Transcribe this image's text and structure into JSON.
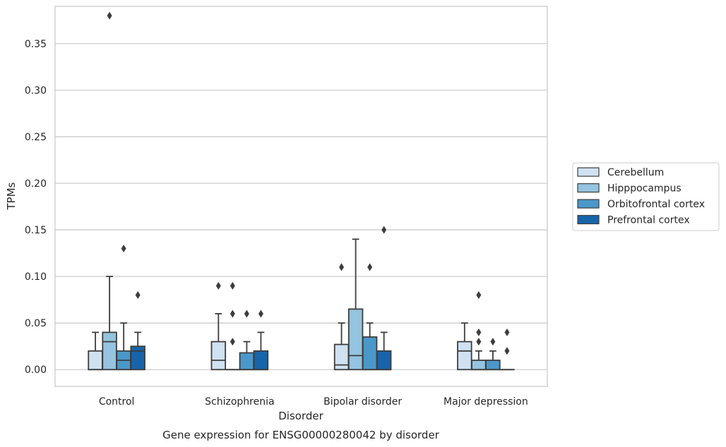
{
  "chart_data": {
    "type": "box",
    "title": "Gene expression for ENSG00000280042 by disorder",
    "xlabel": "Disorder",
    "ylabel": "TPMs",
    "ylim": [
      -0.018,
      0.39
    ],
    "yticks": [
      "0.00",
      "0.05",
      "0.10",
      "0.15",
      "0.20",
      "0.25",
      "0.30",
      "0.35"
    ],
    "categories": [
      "Control",
      "Schizophrenia",
      "Bipolar disorder",
      "Major depression"
    ],
    "grid": "horizontal",
    "legend_position": "right",
    "series": [
      {
        "name": "Cerebellum",
        "color": "#d0e1f2",
        "boxes": [
          {
            "min": 0.0,
            "q1": 0.0,
            "median": 0.0,
            "q3": 0.02,
            "max": 0.04,
            "outliers": []
          },
          {
            "min": 0.0,
            "q1": 0.0,
            "median": 0.01,
            "q3": 0.03,
            "max": 0.06,
            "outliers": [
              0.09
            ]
          },
          {
            "min": 0.0,
            "q1": 0.0,
            "median": 0.005,
            "q3": 0.027,
            "max": 0.05,
            "outliers": [
              0.11
            ]
          },
          {
            "min": 0.0,
            "q1": 0.0,
            "median": 0.02,
            "q3": 0.03,
            "max": 0.05,
            "outliers": []
          }
        ]
      },
      {
        "name": "Hipppocampus",
        "color": "#94c4df",
        "boxes": [
          {
            "min": 0.0,
            "q1": 0.0,
            "median": 0.03,
            "q3": 0.04,
            "max": 0.1,
            "outliers": [
              0.38
            ]
          },
          {
            "min": 0.0,
            "q1": 0.0,
            "median": 0.0,
            "q3": 0.0,
            "max": 0.0,
            "outliers": [
              0.03,
              0.06,
              0.09
            ]
          },
          {
            "min": 0.0,
            "q1": 0.0,
            "median": 0.015,
            "q3": 0.065,
            "max": 0.14,
            "outliers": []
          },
          {
            "min": 0.0,
            "q1": 0.0,
            "median": 0.0,
            "q3": 0.01,
            "max": 0.02,
            "outliers": [
              0.03,
              0.04,
              0.08
            ]
          }
        ]
      },
      {
        "name": "Orbitofrontal cortex",
        "color": "#4a98c9",
        "boxes": [
          {
            "min": 0.0,
            "q1": 0.0,
            "median": 0.01,
            "q3": 0.02,
            "max": 0.05,
            "outliers": [
              0.13
            ]
          },
          {
            "min": 0.0,
            "q1": 0.0,
            "median": 0.0,
            "q3": 0.018,
            "max": 0.03,
            "outliers": [
              0.06
            ]
          },
          {
            "min": 0.0,
            "q1": 0.0,
            "median": 0.0,
            "q3": 0.035,
            "max": 0.05,
            "outliers": [
              0.11
            ]
          },
          {
            "min": 0.0,
            "q1": 0.0,
            "median": 0.0,
            "q3": 0.01,
            "max": 0.02,
            "outliers": [
              0.03
            ]
          }
        ]
      },
      {
        "name": "Prefrontal cortex",
        "color": "#1764ab",
        "boxes": [
          {
            "min": 0.0,
            "q1": 0.0,
            "median": 0.02,
            "q3": 0.025,
            "max": 0.04,
            "outliers": [
              0.08
            ]
          },
          {
            "min": 0.0,
            "q1": 0.0,
            "median": 0.0,
            "q3": 0.02,
            "max": 0.04,
            "outliers": [
              0.06
            ]
          },
          {
            "min": 0.0,
            "q1": 0.0,
            "median": 0.0,
            "q3": 0.02,
            "max": 0.04,
            "outliers": [
              0.15
            ]
          },
          {
            "min": 0.0,
            "q1": 0.0,
            "median": 0.0,
            "q3": 0.0,
            "max": 0.0,
            "outliers": [
              0.02,
              0.04
            ]
          }
        ]
      }
    ]
  }
}
